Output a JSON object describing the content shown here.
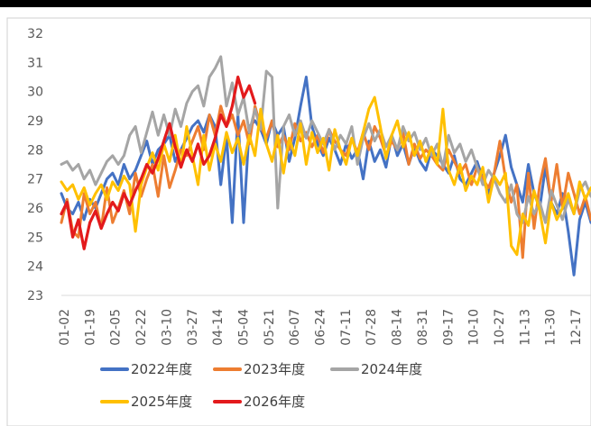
{
  "chart_data": {
    "type": "line",
    "title": "",
    "xlabel": "",
    "ylabel": "",
    "ylim": [
      23,
      32
    ],
    "y_ticks": [
      23,
      24,
      25,
      26,
      27,
      28,
      29,
      30,
      31,
      32
    ],
    "x_ticks": [
      "01-02",
      "01-19",
      "02-05",
      "02-22",
      "03-10",
      "03-27",
      "04-14",
      "05-04",
      "05-21",
      "06-07",
      "06-24",
      "07-11",
      "07-28",
      "08-14",
      "08-31",
      "09-17",
      "10-10",
      "10-27",
      "11-13",
      "11-30",
      "12-17"
    ],
    "grid": false,
    "legend_position": "bottom",
    "legend_rows": [
      [
        "2022年度",
        "2023年度",
        "2024年度"
      ],
      [
        "2025年度",
        "2026年度"
      ]
    ],
    "series": [
      {
        "name": "2022年度",
        "color": "#4472C4",
        "values": [
          26.5,
          26.0,
          25.8,
          26.2,
          25.6,
          26.3,
          26.0,
          26.5,
          27.0,
          27.2,
          26.8,
          27.5,
          27.0,
          27.3,
          27.8,
          28.3,
          27.5,
          28.0,
          28.2,
          28.5,
          27.6,
          28.0,
          28.4,
          28.8,
          29.0,
          28.6,
          29.2,
          28.8,
          26.8,
          28.5,
          25.5,
          29.2,
          25.5,
          28.8,
          29.0,
          28.7,
          28.2,
          29.0,
          28.5,
          28.8,
          27.6,
          28.4,
          29.5,
          30.5,
          28.8,
          28.2,
          27.8,
          28.4,
          28.0,
          27.5,
          28.2,
          27.7,
          28.0,
          27.0,
          28.3,
          27.6,
          28.0,
          27.4,
          28.5,
          27.8,
          28.2,
          27.5,
          28.1,
          27.6,
          27.3,
          28.0,
          27.8,
          27.5,
          27.2,
          27.8,
          27.0,
          26.8,
          27.2,
          27.6,
          27.0,
          26.5,
          27.2,
          27.8,
          28.5,
          27.4,
          26.8,
          26.2,
          27.5,
          26.5,
          26.0,
          27.4,
          26.2,
          25.8,
          26.5,
          25.2,
          23.7,
          25.6,
          26.2,
          25.5
        ]
      },
      {
        "name": "2023年度",
        "color": "#ED7D31",
        "values": [
          25.5,
          26.3,
          25.2,
          25.0,
          26.5,
          25.8,
          26.2,
          25.3,
          26.7,
          25.5,
          26.0,
          26.6,
          25.8,
          27.2,
          26.4,
          27.0,
          27.5,
          26.4,
          27.8,
          26.7,
          27.3,
          28.0,
          27.8,
          28.3,
          28.8,
          28.0,
          29.2,
          28.5,
          29.5,
          28.8,
          29.2,
          28.5,
          29.0,
          28.2,
          29.5,
          28.8,
          28.4,
          29.0,
          28.1,
          28.5,
          28.0,
          28.9,
          28.3,
          28.6,
          28.1,
          28.5,
          27.9,
          28.7,
          28.3,
          28.0,
          27.8,
          28.4,
          27.9,
          28.6,
          28.0,
          28.8,
          28.4,
          27.8,
          28.3,
          28.0,
          28.6,
          27.5,
          28.2,
          27.7,
          28.0,
          27.8,
          27.5,
          27.3,
          28.0,
          27.6,
          27.2,
          27.5,
          26.8,
          27.4,
          27.0,
          26.7,
          27.2,
          28.3,
          27.0,
          26.2,
          26.8,
          24.3,
          27.2,
          25.3,
          26.8,
          27.7,
          26.2,
          27.5,
          26.0,
          27.2,
          26.5,
          25.8,
          26.4,
          25.6
        ]
      },
      {
        "name": "2024年度",
        "color": "#A5A5A5",
        "values": [
          27.5,
          27.6,
          27.3,
          27.5,
          27.0,
          27.3,
          26.8,
          27.2,
          27.6,
          27.8,
          27.5,
          27.8,
          28.5,
          28.8,
          27.9,
          28.6,
          29.3,
          28.5,
          29.2,
          28.5,
          29.4,
          28.8,
          29.6,
          30.0,
          30.2,
          29.5,
          30.5,
          30.8,
          31.2,
          29.5,
          30.3,
          29.2,
          29.8,
          28.6,
          29.4,
          28.7,
          30.7,
          30.5,
          26.0,
          28.8,
          29.2,
          28.5,
          29.0,
          28.4,
          29.0,
          28.6,
          28.2,
          28.7,
          28.0,
          28.5,
          28.2,
          28.8,
          27.5,
          28.4,
          28.9,
          28.3,
          28.7,
          28.1,
          28.5,
          28.0,
          28.8,
          28.3,
          28.6,
          28.0,
          28.4,
          27.8,
          28.2,
          27.4,
          28.5,
          27.9,
          28.2,
          27.6,
          28.0,
          27.4,
          26.8,
          27.3,
          27.0,
          26.5,
          26.2,
          26.8,
          25.8,
          25.5,
          26.4,
          25.8,
          26.2,
          25.5,
          26.6,
          26.1,
          25.6,
          26.3,
          25.8,
          26.6,
          26.9,
          26.4
        ]
      },
      {
        "name": "2025年度",
        "color": "#FFC000",
        "values": [
          26.9,
          26.6,
          26.8,
          26.3,
          26.7,
          26.1,
          26.5,
          26.8,
          26.3,
          26.9,
          26.6,
          27.1,
          26.8,
          25.2,
          26.8,
          27.4,
          27.9,
          27.3,
          28.2,
          27.6,
          28.5,
          27.4,
          28.8,
          27.8,
          26.8,
          28.5,
          27.3,
          28.2,
          27.6,
          28.6,
          27.9,
          28.4,
          27.5,
          28.5,
          27.8,
          29.4,
          28.2,
          27.6,
          28.5,
          27.2,
          28.4,
          27.8,
          28.9,
          27.5,
          28.6,
          27.9,
          28.4,
          27.3,
          28.7,
          28.0,
          27.5,
          28.4,
          27.8,
          28.6,
          29.4,
          29.8,
          28.8,
          27.7,
          28.5,
          29.0,
          28.1,
          28.6,
          27.8,
          28.3,
          27.6,
          28.1,
          27.5,
          29.4,
          27.3,
          26.8,
          27.5,
          26.6,
          27.1,
          26.8,
          27.4,
          26.2,
          27.1,
          26.8,
          27.2,
          24.7,
          24.4,
          25.8,
          25.4,
          26.6,
          25.9,
          24.8,
          26.2,
          25.6,
          26.0,
          26.5,
          25.8,
          26.9,
          26.3,
          26.7
        ]
      },
      {
        "name": "2026年度",
        "color": "#E31A1C",
        "values": [
          25.8,
          26.2,
          25.0,
          25.6,
          24.6,
          25.5,
          25.9,
          25.3,
          25.8,
          26.2,
          25.9,
          26.5,
          26.1,
          26.6,
          27.0,
          27.5,
          27.2,
          27.7,
          28.3,
          28.9,
          28.1,
          27.4,
          28.0,
          27.6,
          28.2,
          27.5,
          27.8,
          28.4,
          29.2,
          28.8,
          29.5,
          30.5,
          29.8,
          30.2,
          29.6
        ]
      }
    ]
  }
}
